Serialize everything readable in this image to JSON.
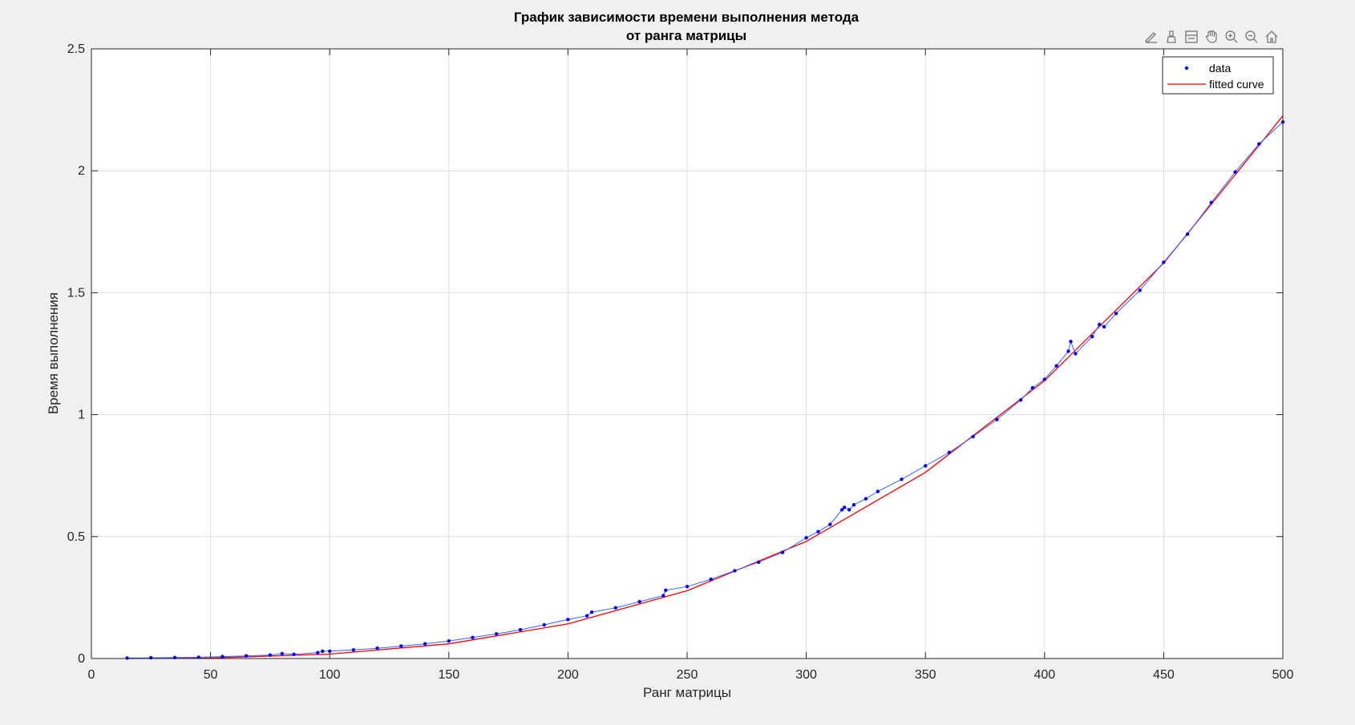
{
  "chart_data": {
    "type": "line",
    "title": [
      "График зависимости времени выполнения метода",
      "от ранга матрицы"
    ],
    "xlabel": "Ранг матрицы",
    "ylabel": "Время выполнения",
    "xlim": [
      0,
      500
    ],
    "ylim": [
      0,
      2.5
    ],
    "xticks": [
      0,
      50,
      100,
      150,
      200,
      250,
      300,
      350,
      400,
      450,
      500
    ],
    "yticks": [
      0,
      0.5,
      1,
      1.5,
      2,
      2.5
    ],
    "xtick_labels": [
      "0",
      "50",
      "100",
      "150",
      "200",
      "250",
      "300",
      "350",
      "400",
      "450",
      "500"
    ],
    "ytick_labels": [
      "0",
      "0.5",
      "1",
      "1.5",
      "2",
      "2.5"
    ],
    "grid": true,
    "legend_position": "top-right",
    "series": [
      {
        "name": "data",
        "style": "dots",
        "color": "#0000ff",
        "x": [
          15,
          25,
          35,
          45,
          55,
          65,
          75,
          80,
          85,
          95,
          97,
          100,
          110,
          120,
          130,
          140,
          150,
          160,
          170,
          180,
          190,
          200,
          208,
          210,
          220,
          230,
          240,
          241,
          250,
          260,
          270,
          280,
          290,
          300,
          305,
          310,
          315,
          316,
          318,
          320,
          325,
          330,
          340,
          350,
          360,
          370,
          380,
          390,
          395,
          400,
          405,
          410,
          411,
          413,
          420,
          423,
          425,
          430,
          440,
          450,
          460,
          470,
          480,
          490,
          500
        ],
        "y": [
          0.002,
          0.003,
          0.004,
          0.005,
          0.008,
          0.011,
          0.014,
          0.02,
          0.017,
          0.024,
          0.03,
          0.03,
          0.035,
          0.042,
          0.051,
          0.06,
          0.072,
          0.086,
          0.101,
          0.118,
          0.138,
          0.16,
          0.175,
          0.19,
          0.208,
          0.233,
          0.258,
          0.28,
          0.295,
          0.325,
          0.36,
          0.395,
          0.435,
          0.495,
          0.52,
          0.55,
          0.61,
          0.62,
          0.61,
          0.63,
          0.655,
          0.685,
          0.735,
          0.79,
          0.845,
          0.91,
          0.98,
          1.06,
          1.11,
          1.145,
          1.2,
          1.26,
          1.3,
          1.25,
          1.32,
          1.37,
          1.36,
          1.415,
          1.51,
          1.625,
          1.74,
          1.87,
          1.995,
          2.11,
          2.2
        ]
      },
      {
        "name": "fitted curve",
        "style": "line",
        "color": "#ff0000",
        "x": [
          15,
          50,
          100,
          150,
          200,
          250,
          300,
          350,
          400,
          450,
          500
        ],
        "y": [
          0.0,
          0.002,
          0.018,
          0.06,
          0.142,
          0.278,
          0.48,
          0.763,
          1.139,
          1.622,
          2.225
        ]
      }
    ]
  },
  "toolbar": {
    "icons": [
      "brush-edit-icon",
      "data-cursor-icon",
      "legend-toggle-icon",
      "pan-icon",
      "zoom-in-icon",
      "zoom-out-icon",
      "home-icon"
    ]
  }
}
